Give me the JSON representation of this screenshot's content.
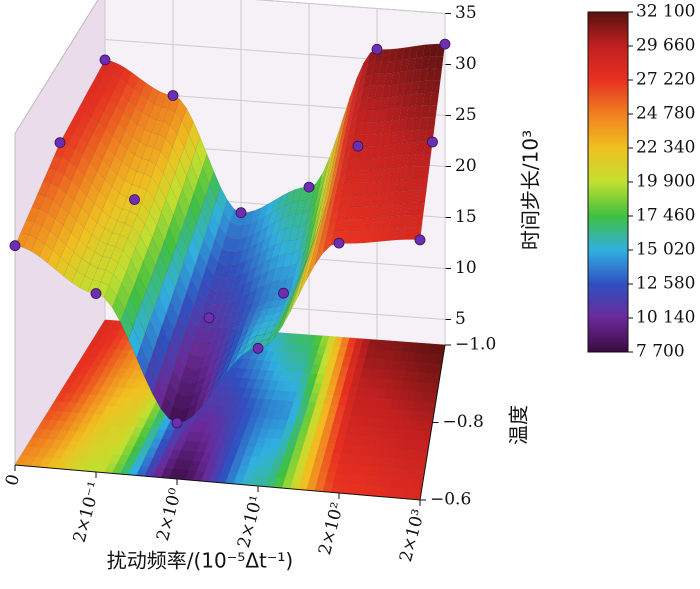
{
  "chart_data": {
    "type": "surface3d",
    "x_label": "扰动频率/(10⁻⁵Δt⁻¹)",
    "y_label": "温度",
    "z_label": "时间步长/10³",
    "xticks": [
      {
        "value": 0,
        "label": "0"
      },
      {
        "value": 0.2,
        "label": "2×10⁻¹"
      },
      {
        "value": 2,
        "label": "2×10⁰"
      },
      {
        "value": 20,
        "label": "2×10¹"
      },
      {
        "value": 200,
        "label": "2×10²"
      },
      {
        "value": 2000,
        "label": "2×10³"
      }
    ],
    "y": [
      -0.6,
      -0.8,
      -1.0
    ],
    "ylim": [
      -0.6,
      -1.0
    ],
    "yticks": [
      {
        "value": -1.0,
        "label": "−1.0"
      },
      {
        "value": -0.8,
        "label": "−0.8"
      },
      {
        "value": -0.6,
        "label": "−0.6"
      }
    ],
    "zlim": [
      2.5,
      35
    ],
    "zticks": [
      5,
      10,
      15,
      20,
      25,
      30,
      35
    ],
    "z": [
      [
        24,
        20,
        8,
        16,
        27,
        28
      ],
      [
        27,
        22,
        11,
        14,
        29,
        30
      ],
      [
        28,
        25,
        14,
        17,
        31,
        32
      ]
    ],
    "colorbar": {
      "lim": [
        7700,
        32100
      ],
      "ticks": [
        {
          "value": 7700,
          "label": "7 700"
        },
        {
          "value": 10140,
          "label": "10 140"
        },
        {
          "value": 12580,
          "label": "12 580"
        },
        {
          "value": 15020,
          "label": "15 020"
        },
        {
          "value": 17460,
          "label": "17 460"
        },
        {
          "value": 19900,
          "label": "19 900"
        },
        {
          "value": 22340,
          "label": "22 340"
        },
        {
          "value": 24780,
          "label": "24 780"
        },
        {
          "value": 27220,
          "label": "27 220"
        },
        {
          "value": 29660,
          "label": "29 660"
        },
        {
          "value": 32100,
          "label": "32 100"
        }
      ]
    },
    "colorscale": [
      "#3a0a40",
      "#6a2a9a",
      "#3050c0",
      "#30b0e0",
      "#40c040",
      "#c0e030",
      "#f0c020",
      "#f08020",
      "#e83020",
      "#c02020",
      "#5a1010"
    ],
    "point_color": "#6a30b0"
  }
}
